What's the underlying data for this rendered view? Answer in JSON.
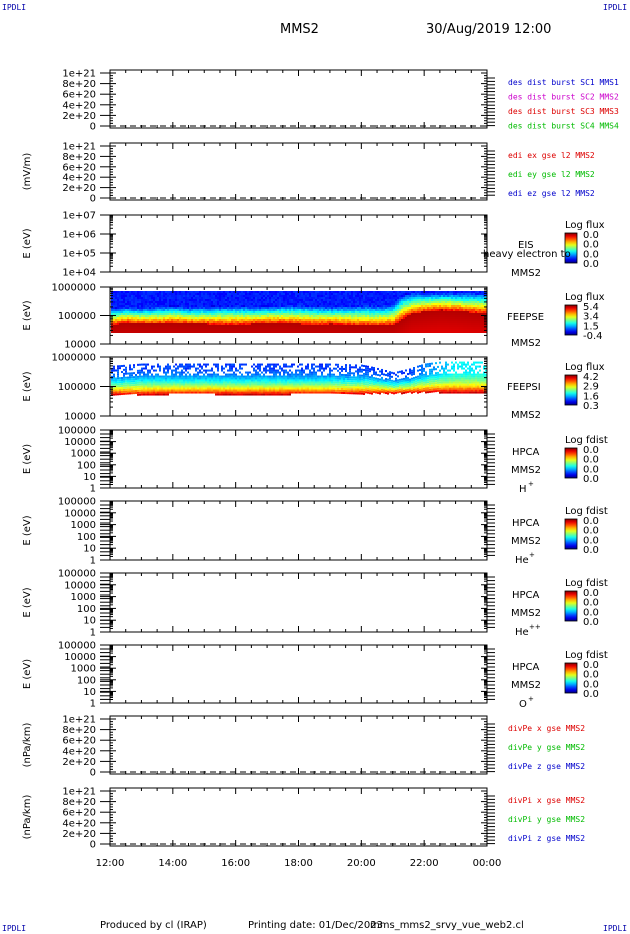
{
  "corner_label": "IPDLI",
  "header": {
    "spacecraft": "MMS2",
    "datetime": "30/Aug/2019 12:00"
  },
  "footer": {
    "producer": "Produced by cl (IRAP)",
    "printing_date": "Printing date: 01/Dec/2023",
    "script_name": "mms_mms2_srvy_vue_web2.cl"
  },
  "colors": {
    "red": "#dd0000",
    "green": "#00bb00",
    "blue": "#0000cc",
    "magenta": "#cc00cc"
  },
  "chart_data": [
    {
      "type": "line",
      "id": "des_dist_burst",
      "ylabel": "",
      "ytick_labels": [
        "0",
        "2e+20",
        "4e+20",
        "6e+20",
        "8e+20",
        "1e+21"
      ],
      "ylim": [
        0,
        1.1e+21
      ],
      "legend": [
        {
          "text": "des dist burst SC1 MMS1",
          "color": "#0000cc"
        },
        {
          "text": "des dist burst SC2 MMS2",
          "color": "#cc00cc"
        },
        {
          "text": "des dist burst SC3 MMS3",
          "color": "#dd0000"
        },
        {
          "text": "des dist burst SC4 MMS4",
          "color": "#00bb00"
        }
      ],
      "series": [],
      "zero_line": "dashed"
    },
    {
      "type": "line",
      "id": "edi_e_gse",
      "ylabel": "(mV/m)",
      "ytick_labels": [
        "0",
        "2e+20",
        "4e+20",
        "6e+20",
        "8e+20",
        "1e+21"
      ],
      "ylim": [
        0,
        1.1e+21
      ],
      "legend": [
        {
          "text": "edi ex gse l2 MMS2",
          "color": "#dd0000"
        },
        {
          "text": "edi ey gse l2 MMS2",
          "color": "#00bb00"
        },
        {
          "text": "edi ez gse l2 MMS2",
          "color": "#0000cc"
        }
      ],
      "series": [],
      "zero_line": "dashed"
    },
    {
      "type": "heatmap",
      "id": "eis",
      "ylabel": "E (eV)",
      "scale": "log",
      "ytick_labels": [
        "1e+04",
        "1e+05",
        "1e+06",
        "1e+07"
      ],
      "ylim": [
        10000,
        10000000
      ],
      "instrument": "EIS",
      "extra_label": "heavy electron to",
      "spacecraft": "MMS2",
      "colorbar": {
        "title": "Log flux",
        "ticks": [
          "0.0",
          "0.0",
          "0.0",
          "0.0"
        ]
      },
      "has_data": false
    },
    {
      "type": "heatmap",
      "id": "feepse",
      "ylabel": "E (eV)",
      "scale": "log",
      "ytick_labels": [
        "10000",
        "100000",
        "1000000"
      ],
      "ylim": [
        10000,
        1000000
      ],
      "instrument": "FEEPSE",
      "spacecraft": "MMS2",
      "colorbar": {
        "title": "Log flux",
        "ticks": [
          "5.4",
          "3.4",
          "1.5",
          "-0.4"
        ]
      },
      "has_data": true,
      "profile": {
        "hours": [
          12.0,
          12.5,
          13.0,
          13.5,
          14.0,
          14.5,
          15.0,
          15.5,
          16.0,
          16.5,
          17.0,
          17.5,
          18.0,
          18.5,
          19.0,
          19.5,
          20.0,
          20.5,
          21.0,
          21.3,
          21.6,
          22.0,
          22.5,
          23.0,
          23.5,
          24.0
        ],
        "red_top_energy": [
          50000,
          60000,
          55000,
          55000,
          60000,
          55000,
          55000,
          52000,
          52000,
          55000,
          58000,
          60000,
          55000,
          52000,
          55000,
          50000,
          48000,
          48000,
          50000,
          80000,
          130000,
          150000,
          170000,
          160000,
          140000,
          130000
        ],
        "blue_bottom_energy": [
          200000,
          220000,
          210000,
          230000,
          240000,
          220000,
          230000,
          240000,
          250000,
          230000,
          240000,
          250000,
          260000,
          240000,
          230000,
          250000,
          260000,
          250000,
          280000,
          600000,
          700000,
          700000,
          700000,
          700000,
          700000,
          700000
        ]
      }
    },
    {
      "type": "heatmap",
      "id": "feepsi",
      "ylabel": "E (eV)",
      "scale": "log",
      "ytick_labels": [
        "10000",
        "100000",
        "1000000"
      ],
      "ylim": [
        10000,
        1000000
      ],
      "instrument": "FEEPSI",
      "spacecraft": "MMS2",
      "colorbar": {
        "title": "Log flux",
        "ticks": [
          "4.2",
          "2.9",
          "1.6",
          "0.3"
        ]
      },
      "has_data": true,
      "profile": {
        "hours": [
          12.0,
          13.0,
          14.0,
          15.0,
          16.0,
          17.0,
          18.0,
          19.0,
          20.0,
          21.0,
          21.5,
          22.0,
          22.5,
          23.0,
          23.5,
          24.0
        ],
        "band_bottom_energy": [
          55000,
          56000,
          58000,
          58000,
          57000,
          57000,
          58000,
          58000,
          60000,
          62000,
          64000,
          66000,
          66000,
          66000,
          66000,
          66000
        ],
        "band_top_energy": [
          500000,
          600000,
          600000,
          600000,
          600000,
          600000,
          600000,
          600000,
          550000,
          300000,
          400000,
          600000,
          700000,
          700000,
          700000,
          700000
        ]
      }
    },
    {
      "type": "heatmap",
      "id": "hpca_h",
      "ylabel": "E (eV)",
      "scale": "log",
      "ytick_labels": [
        "1",
        "10",
        "100",
        "1000",
        "10000",
        "100000"
      ],
      "ylim": [
        1,
        100000
      ],
      "instrument": "HPCA",
      "spacecraft": "MMS2",
      "species": "H",
      "charge": "+",
      "colorbar": {
        "title": "Log fdist",
        "ticks": [
          "0.0",
          "0.0",
          "0.0",
          "0.0"
        ]
      },
      "has_data": false
    },
    {
      "type": "heatmap",
      "id": "hpca_he",
      "ylabel": "E (eV)",
      "scale": "log",
      "ytick_labels": [
        "1",
        "10",
        "100",
        "1000",
        "10000",
        "100000"
      ],
      "ylim": [
        1,
        100000
      ],
      "instrument": "HPCA",
      "spacecraft": "MMS2",
      "species": "He",
      "charge": "+",
      "colorbar": {
        "title": "Log fdist",
        "ticks": [
          "0.0",
          "0.0",
          "0.0",
          "0.0"
        ]
      },
      "has_data": false
    },
    {
      "type": "heatmap",
      "id": "hpca_hepp",
      "ylabel": "E (eV)",
      "scale": "log",
      "ytick_labels": [
        "1",
        "10",
        "100",
        "1000",
        "10000",
        "100000"
      ],
      "ylim": [
        1,
        100000
      ],
      "instrument": "HPCA",
      "spacecraft": "MMS2",
      "species": "He",
      "charge": "++",
      "colorbar": {
        "title": "Log fdist",
        "ticks": [
          "0.0",
          "0.0",
          "0.0",
          "0.0"
        ]
      },
      "has_data": false
    },
    {
      "type": "heatmap",
      "id": "hpca_o",
      "ylabel": "E (eV)",
      "scale": "log",
      "ytick_labels": [
        "1",
        "10",
        "100",
        "1000",
        "10000",
        "100000"
      ],
      "ylim": [
        1,
        100000
      ],
      "instrument": "HPCA",
      "spacecraft": "MMS2",
      "species": "O",
      "charge": "+",
      "colorbar": {
        "title": "Log fdist",
        "ticks": [
          "0.0",
          "0.0",
          "0.0",
          "0.0"
        ]
      },
      "has_data": false
    },
    {
      "type": "line",
      "id": "divpe",
      "ylabel": "(nPa/km)",
      "ytick_labels": [
        "0",
        "2e+20",
        "4e+20",
        "6e+20",
        "8e+20",
        "1e+21"
      ],
      "ylim": [
        0,
        1.1e+21
      ],
      "legend": [
        {
          "text": "divPe x gse MMS2",
          "color": "#dd0000"
        },
        {
          "text": "divPe y gse MMS2",
          "color": "#00bb00"
        },
        {
          "text": "divPe z gse MMS2",
          "color": "#0000cc"
        }
      ],
      "series": [],
      "zero_line": "dashed"
    },
    {
      "type": "line",
      "id": "divpi",
      "ylabel": "(nPa/km)",
      "ytick_labels": [
        "0",
        "2e+20",
        "4e+20",
        "6e+20",
        "8e+20",
        "1e+21"
      ],
      "ylim": [
        0,
        1.1e+21
      ],
      "legend": [
        {
          "text": "divPi x gse MMS2",
          "color": "#dd0000"
        },
        {
          "text": "divPi y gse MMS2",
          "color": "#00bb00"
        },
        {
          "text": "divPi z gse MMS2",
          "color": "#0000cc"
        }
      ],
      "series": [],
      "zero_line": "dashed"
    }
  ],
  "time_axis": {
    "tick_labels": [
      "12:00",
      "14:00",
      "16:00",
      "18:00",
      "20:00",
      "22:00",
      "00:00"
    ],
    "range_hours": [
      12,
      24
    ]
  }
}
